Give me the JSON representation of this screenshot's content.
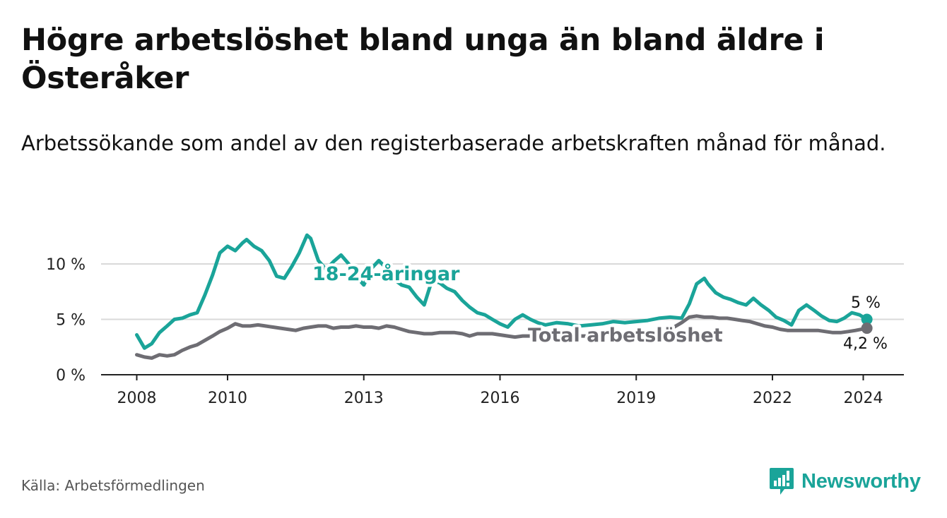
{
  "header": {
    "title": "Högre arbetslöshet bland unga än bland äldre i Österåker",
    "subtitle": "Arbetssökande som andel av den registerbaserade arbetskraften månad för månad."
  },
  "footer": {
    "source": "Källa: Arbetsförmedlingen",
    "brand": "Newsworthy"
  },
  "colors": {
    "youth": "#1aa499",
    "total": "#6e6d73",
    "grid": "#d9d9d9",
    "axis": "#222222",
    "text": "#111111"
  },
  "chart_data": {
    "type": "line",
    "title": "Högre arbetslöshet bland unga än bland äldre i Österåker",
    "xlabel": "",
    "ylabel": "",
    "xlim": [
      2007.6,
      2025.4
    ],
    "ylim": [
      0,
      13
    ],
    "y_ticks": [
      0,
      5,
      10
    ],
    "y_tick_labels": [
      "0 %",
      "5 %",
      "10 %"
    ],
    "x_ticks": [
      2008,
      2010,
      2013,
      2016,
      2019,
      2022,
      2024
    ],
    "x_tick_labels": [
      "2008",
      "2010",
      "2013",
      "2016",
      "2019",
      "2022",
      "2024"
    ],
    "series": [
      {
        "name": "18-24-åringar",
        "color": "#1aa499",
        "end_label": "5 %",
        "x": [
          2008.0,
          2008.17,
          2008.33,
          2008.5,
          2008.67,
          2008.83,
          2009.0,
          2009.17,
          2009.33,
          2009.5,
          2009.67,
          2009.83,
          2010.0,
          2010.17,
          2010.33,
          2010.42,
          2010.58,
          2010.75,
          2010.92,
          2011.08,
          2011.25,
          2011.42,
          2011.58,
          2011.75,
          2011.83,
          2012.0,
          2012.17,
          2012.33,
          2012.5,
          2012.67,
          2012.83,
          2013.0,
          2013.17,
          2013.33,
          2013.5,
          2013.67,
          2013.83,
          2014.0,
          2014.17,
          2014.33,
          2014.5,
          2014.67,
          2014.83,
          2015.0,
          2015.17,
          2015.33,
          2015.5,
          2015.67,
          2015.83,
          2016.0,
          2016.17,
          2016.33,
          2016.5,
          2016.67,
          2016.83,
          2017.0,
          2017.25,
          2017.5,
          2017.75,
          2018.0,
          2018.25,
          2018.5,
          2018.75,
          2019.0,
          2019.25,
          2019.5,
          2019.75,
          2020.0,
          2020.17,
          2020.33,
          2020.5,
          2020.58,
          2020.75,
          2020.92,
          2021.08,
          2021.25,
          2021.42,
          2021.58,
          2021.75,
          2021.92,
          2022.08,
          2022.25,
          2022.42,
          2022.58,
          2022.75,
          2022.92,
          2023.08,
          2023.25,
          2023.42,
          2023.58,
          2023.75,
          2023.92,
          2024.08
        ],
        "y": [
          3.6,
          2.4,
          2.8,
          3.8,
          4.4,
          5.0,
          5.1,
          5.4,
          5.6,
          7.2,
          9.0,
          11.0,
          11.6,
          11.2,
          11.9,
          12.2,
          11.6,
          11.2,
          10.3,
          8.9,
          8.7,
          9.8,
          11.0,
          12.6,
          12.3,
          10.3,
          9.5,
          10.2,
          10.8,
          10.0,
          8.9,
          8.1,
          9.6,
          10.3,
          9.6,
          8.6,
          8.1,
          7.9,
          7.0,
          6.3,
          8.5,
          8.3,
          7.8,
          7.5,
          6.7,
          6.1,
          5.6,
          5.4,
          5.0,
          4.6,
          4.3,
          5.0,
          5.4,
          5.0,
          4.7,
          4.5,
          4.7,
          4.6,
          4.4,
          4.5,
          4.6,
          4.8,
          4.7,
          4.8,
          4.9,
          5.1,
          5.2,
          5.1,
          6.4,
          8.2,
          8.7,
          8.2,
          7.4,
          7.0,
          6.8,
          6.5,
          6.3,
          6.9,
          6.3,
          5.8,
          5.2,
          4.9,
          4.5,
          5.8,
          6.3,
          5.8,
          5.3,
          4.9,
          4.8,
          5.1,
          5.6,
          5.4,
          5.0
        ]
      },
      {
        "name": "Total arbetslöshet",
        "color": "#6e6d73",
        "end_label": "4,2 %",
        "x": [
          2008.0,
          2008.17,
          2008.33,
          2008.5,
          2008.67,
          2008.83,
          2009.0,
          2009.17,
          2009.33,
          2009.5,
          2009.67,
          2009.83,
          2010.0,
          2010.17,
          2010.33,
          2010.5,
          2010.67,
          2010.83,
          2011.0,
          2011.17,
          2011.33,
          2011.5,
          2011.67,
          2011.83,
          2012.0,
          2012.17,
          2012.33,
          2012.5,
          2012.67,
          2012.83,
          2013.0,
          2013.17,
          2013.33,
          2013.5,
          2013.67,
          2013.83,
          2014.0,
          2014.17,
          2014.33,
          2014.5,
          2014.67,
          2014.83,
          2015.0,
          2015.17,
          2015.33,
          2015.5,
          2015.67,
          2015.83,
          2016.0,
          2016.17,
          2016.33,
          2016.5,
          2016.67,
          2016.83,
          2017.0,
          2017.25,
          2017.5,
          2017.75,
          2018.0,
          2018.25,
          2018.5,
          2018.75,
          2019.0,
          2019.25,
          2019.5,
          2019.75,
          2020.0,
          2020.17,
          2020.33,
          2020.5,
          2020.67,
          2020.83,
          2021.0,
          2021.17,
          2021.33,
          2021.5,
          2021.67,
          2021.83,
          2022.0,
          2022.17,
          2022.33,
          2022.5,
          2022.67,
          2022.83,
          2023.0,
          2023.17,
          2023.33,
          2023.5,
          2023.67,
          2023.83,
          2024.08
        ],
        "y": [
          1.8,
          1.6,
          1.5,
          1.8,
          1.7,
          1.8,
          2.2,
          2.5,
          2.7,
          3.1,
          3.5,
          3.9,
          4.2,
          4.6,
          4.4,
          4.4,
          4.5,
          4.4,
          4.3,
          4.2,
          4.1,
          4.0,
          4.2,
          4.3,
          4.4,
          4.4,
          4.2,
          4.3,
          4.3,
          4.4,
          4.3,
          4.3,
          4.2,
          4.4,
          4.3,
          4.1,
          3.9,
          3.8,
          3.7,
          3.7,
          3.8,
          3.8,
          3.8,
          3.7,
          3.5,
          3.7,
          3.7,
          3.7,
          3.6,
          3.5,
          3.4,
          3.5,
          3.5,
          3.5,
          3.5,
          3.6,
          3.5,
          3.5,
          3.5,
          3.6,
          3.6,
          3.6,
          3.7,
          3.8,
          3.9,
          4.1,
          4.7,
          5.2,
          5.3,
          5.2,
          5.2,
          5.1,
          5.1,
          5.0,
          4.9,
          4.8,
          4.6,
          4.4,
          4.3,
          4.1,
          4.0,
          4.0,
          4.0,
          4.0,
          4.0,
          3.9,
          3.8,
          3.8,
          3.9,
          4.0,
          4.2
        ]
      }
    ],
    "annotations": [
      {
        "text": "18-24-åringar",
        "series": "18-24-åringar"
      },
      {
        "text": "Total arbetslöshet",
        "series": "Total arbetslöshet"
      }
    ]
  }
}
